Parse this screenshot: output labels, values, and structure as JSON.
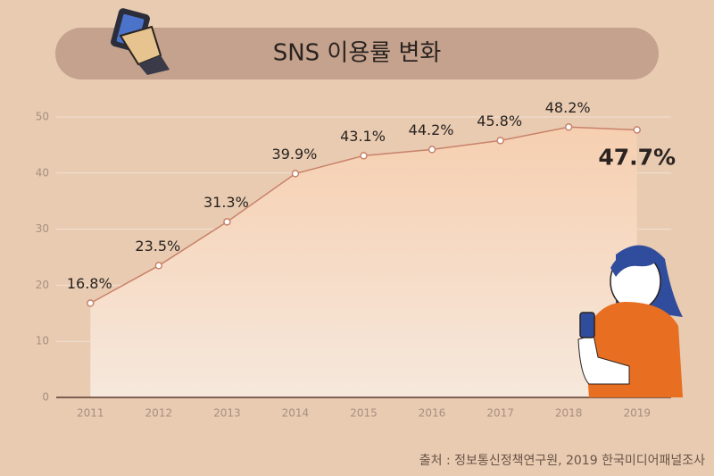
{
  "chart_data": {
    "type": "line",
    "title": "SNS 이용률 변화",
    "categories": [
      "2011",
      "2012",
      "2013",
      "2014",
      "2015",
      "2016",
      "2017",
      "2018",
      "2019"
    ],
    "series": [
      {
        "name": "SNS 이용률",
        "color": "#c9826a",
        "values": [
          16.8,
          23.5,
          31.3,
          39.9,
          43.1,
          44.2,
          45.8,
          48.2,
          47.7
        ],
        "value_labels": [
          "16.8%",
          "23.5%",
          "31.3%",
          "39.9%",
          "43.1%",
          "44.2%",
          "45.8%",
          "48.2%",
          "47.7%"
        ]
      }
    ],
    "ylim": [
      0,
      50
    ],
    "yticks": [
      0,
      10,
      20,
      30,
      40,
      50
    ],
    "grid": true,
    "source": "출처 :  정보통신정책연구원, 2019 한국미디어패널조사"
  }
}
